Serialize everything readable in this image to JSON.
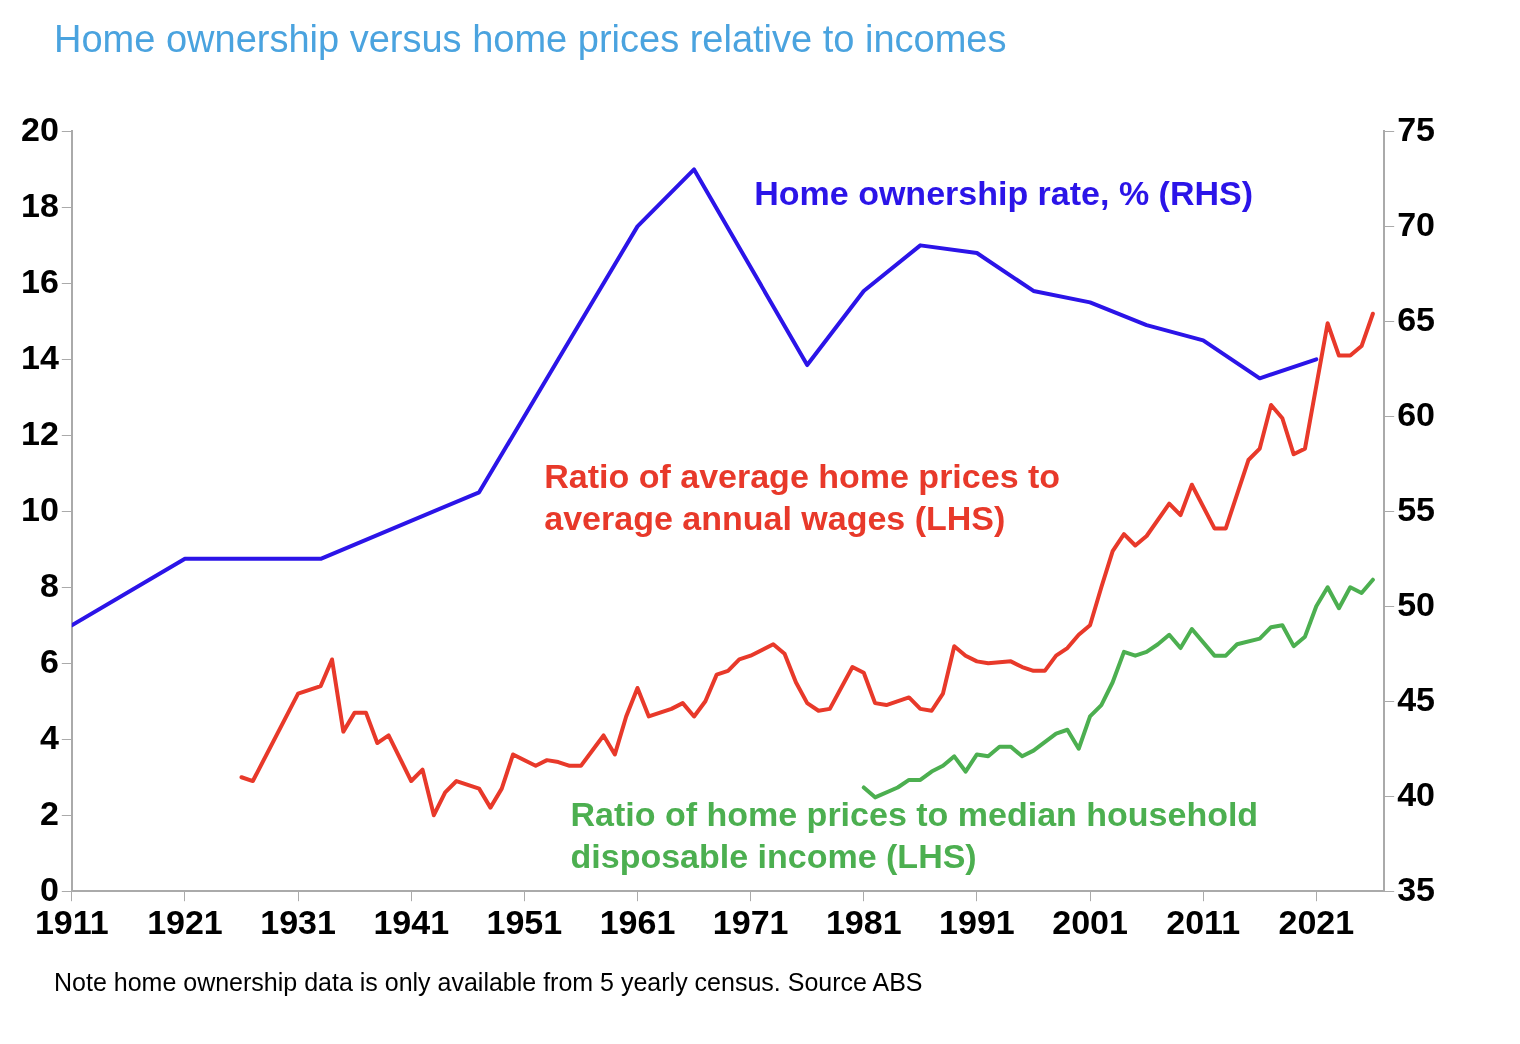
{
  "chart_data": {
    "type": "line",
    "title": "Home ownership versus home prices relative to incomes",
    "xlim": [
      1911,
      2027
    ],
    "xticks": [
      1911,
      1921,
      1931,
      1941,
      1951,
      1961,
      1971,
      1981,
      1991,
      2001,
      2011,
      2021
    ],
    "ylim": [
      0,
      20
    ],
    "yticks": [
      0,
      2,
      4,
      6,
      8,
      10,
      12,
      14,
      16,
      18,
      20
    ],
    "y2lim": [
      35,
      75
    ],
    "y2ticks": [
      35,
      40,
      45,
      50,
      55,
      60,
      65,
      70,
      75
    ],
    "grid": false,
    "legend": false,
    "marker": "none",
    "line_style": "solid",
    "series": [
      {
        "name": "Home ownership rate, % (RHS)",
        "color": "#2b14e8",
        "axis": "y2",
        "x": [
          1911,
          1921,
          1933,
          1947,
          1954,
          1961,
          1966,
          1976,
          1981,
          1986,
          1991,
          1996,
          2001,
          2006,
          2011,
          2016,
          2021
        ],
        "values": [
          49,
          52.5,
          52.5,
          56,
          63,
          70,
          73,
          62.7,
          66.6,
          69,
          68.6,
          66.6,
          66,
          64.8,
          64,
          62,
          63
        ]
      },
      {
        "name": "Ratio of average home prices to average annual wages (LHS)",
        "color": "#e8392a",
        "axis": "y",
        "x": [
          1926,
          1927,
          1931,
          1932,
          1933,
          1934,
          1935,
          1936,
          1937,
          1938,
          1939,
          1941,
          1942,
          1943,
          1944,
          1945,
          1947,
          1948,
          1949,
          1950,
          1952,
          1953,
          1954,
          1955,
          1956,
          1958,
          1959,
          1960,
          1961,
          1962,
          1964,
          1965,
          1966,
          1967,
          1968,
          1969,
          1970,
          1971,
          1973,
          1974,
          1975,
          1976,
          1977,
          1978,
          1980,
          1981,
          1982,
          1983,
          1985,
          1986,
          1987,
          1988,
          1989,
          1990,
          1991,
          1992,
          1994,
          1995,
          1996,
          1997,
          1998,
          1999,
          2000,
          2001,
          2002,
          2003,
          2004,
          2005,
          2006,
          2008,
          2009,
          2010,
          2012,
          2013,
          2015,
          2016,
          2017,
          2018,
          2019,
          2020,
          2022,
          2023,
          2024,
          2025,
          2026
        ],
        "values": [
          3.0,
          2.9,
          5.2,
          5.3,
          5.4,
          6.1,
          4.2,
          4.7,
          4.7,
          3.9,
          4.1,
          2.9,
          3.2,
          2.0,
          2.6,
          2.9,
          2.7,
          2.2,
          2.7,
          3.6,
          3.3,
          3.45,
          3.4,
          3.3,
          3.3,
          4.1,
          3.6,
          4.6,
          5.35,
          4.6,
          4.8,
          4.95,
          4.6,
          5.0,
          5.7,
          5.8,
          6.1,
          6.2,
          6.5,
          6.25,
          5.5,
          4.95,
          4.75,
          4.8,
          5.9,
          5.75,
          4.95,
          4.9,
          5.1,
          4.8,
          4.75,
          5.2,
          6.45,
          6.2,
          6.05,
          6.0,
          6.05,
          5.9,
          5.8,
          5.8,
          6.2,
          6.4,
          6.75,
          7.0,
          8.0,
          8.95,
          9.4,
          9.1,
          9.35,
          10.2,
          9.9,
          10.7,
          9.55,
          9.55,
          11.35,
          11.65,
          12.8,
          12.45,
          11.5,
          11.65,
          14.95,
          14.1,
          14.1,
          14.35,
          15.2
        ]
      },
      {
        "name": "Ratio of home prices to median household disposable income (LHS)",
        "color": "#4caf50",
        "axis": "y",
        "x": [
          1981,
          1982,
          1984,
          1985,
          1986,
          1987,
          1988,
          1989,
          1990,
          1991,
          1992,
          1993,
          1994,
          1995,
          1996,
          1998,
          1999,
          2000,
          2001,
          2002,
          2003,
          2004,
          2005,
          2006,
          2007,
          2008,
          2009,
          2010,
          2012,
          2013,
          2014,
          2016,
          2017,
          2018,
          2019,
          2020,
          2021,
          2022,
          2023,
          2024,
          2025,
          2026
        ],
        "values": [
          2.73,
          2.47,
          2.73,
          2.93,
          2.93,
          3.15,
          3.3,
          3.55,
          3.15,
          3.6,
          3.55,
          3.8,
          3.8,
          3.55,
          3.7,
          4.15,
          4.25,
          3.75,
          4.6,
          4.9,
          5.5,
          6.3,
          6.2,
          6.3,
          6.5,
          6.75,
          6.4,
          6.9,
          6.2,
          6.2,
          6.5,
          6.65,
          6.95,
          7.0,
          6.45,
          6.7,
          7.5,
          8.0,
          7.45,
          8.0,
          7.85,
          8.2
        ]
      }
    ],
    "annotations": [
      "Note home ownership data is only available from 5 yearly census. Source ABS"
    ]
  }
}
